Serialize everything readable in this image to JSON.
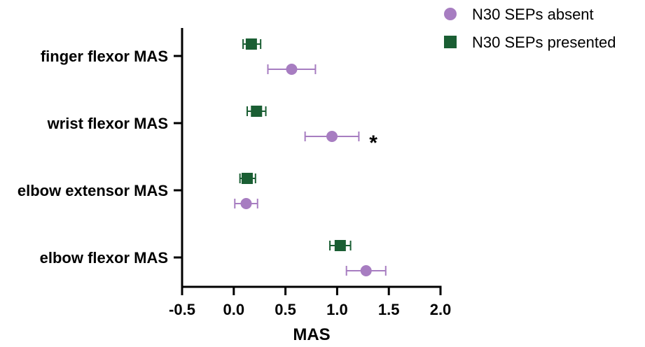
{
  "chart_data": {
    "type": "scatter",
    "orientation": "horizontal",
    "title": "",
    "xlabel": "MAS",
    "ylabel": "",
    "xlim": [
      -0.5,
      2.0
    ],
    "x_ticks": [
      -0.5,
      0.0,
      0.5,
      1.0,
      1.5,
      2.0
    ],
    "x_tick_labels": [
      "-0.5",
      "0.0",
      "0.5",
      "1.0",
      "1.5",
      "2.0"
    ],
    "categories": [
      "finger flexor MAS",
      "wrist flexor MAS",
      "elbow extensor MAS",
      "elbow flexor MAS"
    ],
    "grid": false,
    "legend_position": "top-right",
    "series": [
      {
        "name": "N30 SEPs absent",
        "marker": "circle",
        "color": "#a77dc1",
        "values": [
          0.56,
          0.95,
          0.12,
          1.28
        ],
        "error_low": [
          0.33,
          0.69,
          0.01,
          1.09
        ],
        "error_high": [
          0.79,
          1.21,
          0.23,
          1.47
        ]
      },
      {
        "name": "N30 SEPs presented",
        "marker": "square",
        "color": "#1a5e33",
        "values": [
          0.17,
          0.22,
          0.13,
          1.03
        ],
        "error_low": [
          0.09,
          0.13,
          0.06,
          0.93
        ],
        "error_high": [
          0.26,
          0.31,
          0.21,
          1.13
        ]
      }
    ],
    "annotations": [
      {
        "text": "*",
        "category": "wrist flexor MAS",
        "series": "N30 SEPs absent",
        "x": 1.35
      }
    ]
  }
}
